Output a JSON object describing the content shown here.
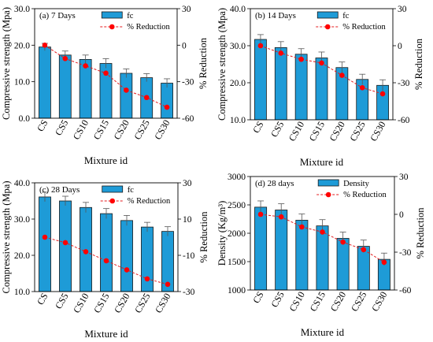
{
  "figure": {
    "panels": [
      {
        "panel_label": "(a) 7 Days",
        "ylabel": "Compressive strength (Mpa)",
        "y2label": "% Reduction",
        "xlabel": "Mixture id",
        "legend": {
          "bar": "fc",
          "line": "% Reduction"
        },
        "yticks": [
          "0.0",
          "10.0",
          "20.0",
          "30.0"
        ],
        "y2ticks": [
          "-60",
          "-30",
          "0",
          "30"
        ]
      },
      {
        "panel_label": "(b) 14 Days",
        "ylabel": "Compressive strength (Mpa)",
        "y2label": "% Reduction",
        "xlabel": "Mixture id",
        "legend": {
          "bar": "fc",
          "line": "% Reduction"
        },
        "yticks": [
          "10.0",
          "20.0",
          "30.0",
          "40.0"
        ],
        "y2ticks": [
          "-60",
          "-30",
          "0",
          "30"
        ]
      },
      {
        "panel_label": "(c) 28 Days",
        "ylabel": "Compressive strength (Mpa)",
        "y2label": "% Reduction",
        "xlabel": "Mixture id",
        "legend": {
          "bar": "fc",
          "line": "% Reduction"
        },
        "yticks": [
          "10.0",
          "20.0",
          "30.0",
          "40.0"
        ],
        "y2ticks": [
          "-30",
          "-10",
          "10",
          "30"
        ]
      },
      {
        "panel_label": "(d) 28 days",
        "ylabel": "Density (Kg/m³)",
        "y2label": "% Reduction",
        "xlabel": "Mixture id",
        "legend": {
          "bar": "Density",
          "line": "% Reduction"
        },
        "yticks": [
          "1000",
          "1500",
          "2000",
          "2500",
          "3000"
        ],
        "y2ticks": [
          "-60",
          "-30",
          "0",
          "30"
        ]
      }
    ]
  },
  "colors": {
    "bar_fill": "#1e9bd7",
    "bar_stroke": "#1a1a1a",
    "line": "#e41a1c",
    "marker": "#ff0000"
  },
  "chart_data": [
    {
      "type": "bar",
      "title": "(a) 7 Days",
      "categories": [
        "CS",
        "CS5",
        "CS10",
        "CS15",
        "CS20",
        "CS25",
        "CS30"
      ],
      "xlabel": "Mixture id",
      "ylabel": "Compressive strength (Mpa)",
      "ylim": [
        0,
        30
      ],
      "y2label": "% Reduction",
      "y2lim": [
        -60,
        30
      ],
      "series": [
        {
          "name": "fc",
          "type": "bar",
          "axis": "left",
          "values": [
            19.5,
            17.3,
            16.1,
            15.0,
            12.3,
            11.1,
            9.6
          ],
          "errors": [
            1.0,
            1.1,
            1.2,
            1.3,
            1.2,
            1.1,
            1.2
          ]
        },
        {
          "name": "% Reduction",
          "type": "line",
          "axis": "right",
          "values": [
            0,
            -11,
            -17,
            -23,
            -37,
            -43,
            -51
          ]
        }
      ],
      "legend_position": "top-right",
      "grid": false
    },
    {
      "type": "bar",
      "title": "(b) 14 Days",
      "categories": [
        "CS",
        "CS5",
        "CS10",
        "CS15",
        "CS20",
        "CS25",
        "CS30"
      ],
      "xlabel": "Mixture id",
      "ylabel": "Compressive strength (Mpa)",
      "ylim": [
        10,
        40
      ],
      "y2label": "% Reduction",
      "y2lim": [
        -60,
        30
      ],
      "series": [
        {
          "name": "fc",
          "type": "bar",
          "axis": "left",
          "values": [
            31.7,
            29.5,
            27.7,
            26.7,
            24.1,
            20.9,
            19.3
          ],
          "errors": [
            1.3,
            1.6,
            1.5,
            1.6,
            1.5,
            1.4,
            1.5
          ]
        },
        {
          "name": "% Reduction",
          "type": "line",
          "axis": "right",
          "values": [
            0,
            -6,
            -11,
            -14,
            -24,
            -34,
            -39
          ]
        }
      ],
      "legend_position": "top-right",
      "grid": false
    },
    {
      "type": "bar",
      "title": "(c) 28 Days",
      "categories": [
        "CS",
        "CS5",
        "CS10",
        "CS15",
        "CS20",
        "CS25",
        "CS30"
      ],
      "xlabel": "Mixture id",
      "ylabel": "Compressive strength (Mpa)",
      "ylim": [
        10,
        40
      ],
      "y2label": "% Reduction",
      "y2lim": [
        -30,
        30
      ],
      "series": [
        {
          "name": "fc",
          "type": "bar",
          "axis": "left",
          "values": [
            36.1,
            35.0,
            33.2,
            31.5,
            29.6,
            27.8,
            26.6
          ],
          "errors": [
            1.3,
            1.3,
            1.4,
            1.4,
            1.4,
            1.3,
            1.3
          ]
        },
        {
          "name": "% Reduction",
          "type": "line",
          "axis": "right",
          "values": [
            0,
            -3,
            -8,
            -13,
            -18,
            -23,
            -26
          ]
        }
      ],
      "legend_position": "top-right",
      "grid": false
    },
    {
      "type": "bar",
      "title": "(d) 28 days",
      "categories": [
        "CS",
        "CS5",
        "CS10",
        "CS15",
        "CS20",
        "CS25",
        "CS30"
      ],
      "xlabel": "Mixture id",
      "ylabel": "Density (Kg/m³)",
      "ylim": [
        1000,
        3000
      ],
      "y2label": "% Reduction",
      "y2lim": [
        -60,
        30
      ],
      "series": [
        {
          "name": "Density",
          "type": "bar",
          "axis": "left",
          "values": [
            2460,
            2410,
            2230,
            2130,
            1910,
            1770,
            1540
          ],
          "errors": [
            110,
            110,
            110,
            110,
            110,
            110,
            110
          ]
        },
        {
          "name": "% Reduction",
          "type": "line",
          "axis": "right",
          "values": [
            0,
            -2,
            -10,
            -14,
            -22,
            -28,
            -38
          ]
        }
      ],
      "legend_position": "top-right",
      "grid": false
    }
  ]
}
